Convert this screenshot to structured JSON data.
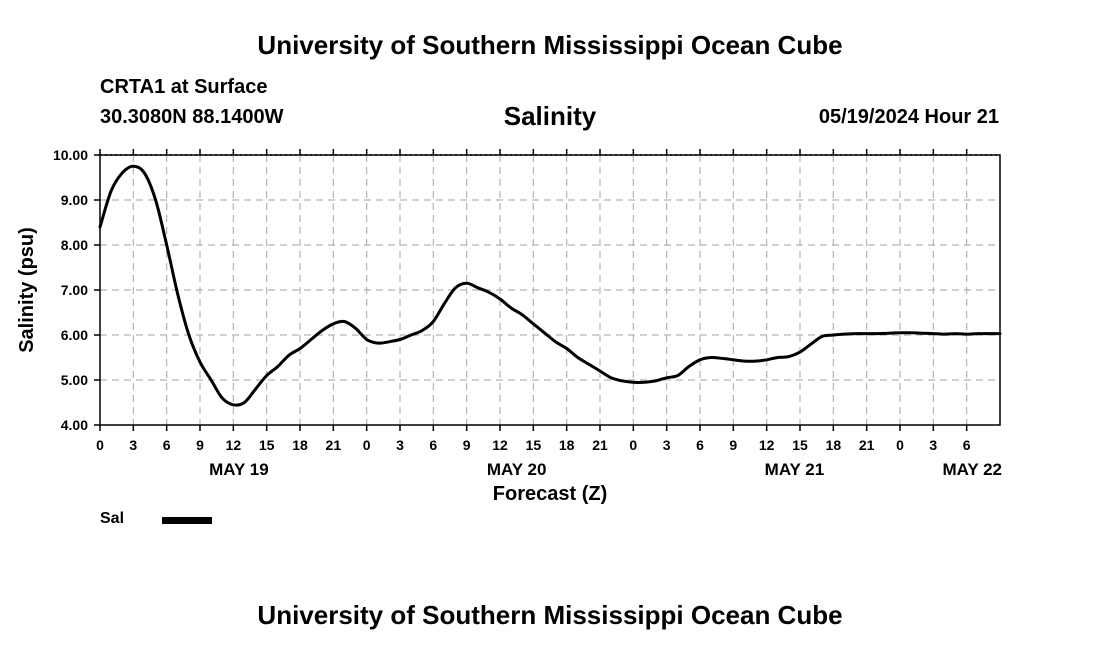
{
  "header": {
    "title": "University of Southern Mississippi Ocean Cube",
    "station": "CRTA1 at Surface",
    "coords": "30.3080N  88.1400W",
    "datetime": "05/19/2024 Hour 21"
  },
  "footer": {
    "title": "University of Southern Mississippi Ocean Cube"
  },
  "legend": {
    "label": "Sal",
    "color": "#000000"
  },
  "chart_data": {
    "type": "line",
    "title": "Salinity",
    "xlabel": "Forecast (Z)",
    "ylabel": "Salinity (psu)",
    "xlim": [
      0,
      81
    ],
    "ylim": [
      4.0,
      10.0
    ],
    "grid": true,
    "y_ticks": [
      "4.00",
      "5.00",
      "6.00",
      "7.00",
      "8.00",
      "9.00",
      "10.00"
    ],
    "x_ticks": [
      "0",
      "3",
      "6",
      "9",
      "12",
      "15",
      "18",
      "21",
      "0",
      "3",
      "6",
      "9",
      "12",
      "15",
      "18",
      "21",
      "0",
      "3",
      "6",
      "9",
      "12",
      "15",
      "18",
      "21",
      "0",
      "3",
      "6"
    ],
    "day_labels": [
      {
        "label": "MAY 19",
        "hour": 12.5
      },
      {
        "label": "MAY 20",
        "hour": 37.5
      },
      {
        "label": "MAY 21",
        "hour": 62.5
      },
      {
        "label": "MAY 22",
        "hour": 78.5
      }
    ],
    "series": [
      {
        "name": "Sal",
        "x": [
          0,
          1,
          2,
          3,
          4,
          5,
          6,
          7,
          8,
          9,
          10,
          11,
          12,
          13,
          14,
          15,
          16,
          17,
          18,
          19,
          20,
          21,
          22,
          23,
          24,
          25,
          26,
          27,
          28,
          29,
          30,
          31,
          32,
          33,
          34,
          35,
          36,
          37,
          38,
          39,
          40,
          41,
          42,
          43,
          44,
          45,
          46,
          47,
          48,
          49,
          50,
          51,
          52,
          53,
          54,
          55,
          56,
          57,
          58,
          59,
          60,
          61,
          62,
          63,
          64,
          65,
          66,
          67,
          68,
          69,
          70,
          71,
          72,
          73,
          74,
          75,
          76,
          77,
          78,
          79,
          80,
          81
        ],
        "values": [
          8.4,
          9.2,
          9.6,
          9.75,
          9.6,
          9.0,
          8.0,
          6.9,
          6.0,
          5.4,
          5.0,
          4.6,
          4.45,
          4.5,
          4.8,
          5.1,
          5.3,
          5.55,
          5.7,
          5.9,
          6.1,
          6.25,
          6.3,
          6.15,
          5.9,
          5.82,
          5.85,
          5.9,
          6.0,
          6.1,
          6.3,
          6.7,
          7.05,
          7.15,
          7.05,
          6.95,
          6.8,
          6.6,
          6.45,
          6.25,
          6.05,
          5.85,
          5.7,
          5.5,
          5.35,
          5.2,
          5.05,
          4.98,
          4.95,
          4.95,
          4.98,
          5.05,
          5.1,
          5.3,
          5.45,
          5.5,
          5.48,
          5.45,
          5.42,
          5.42,
          5.45,
          5.5,
          5.52,
          5.62,
          5.8,
          5.97,
          6.0,
          6.02,
          6.03,
          6.03,
          6.03,
          6.04,
          6.05,
          6.05,
          6.04,
          6.03,
          6.02,
          6.03,
          6.02,
          6.03,
          6.03,
          6.03
        ]
      }
    ]
  }
}
